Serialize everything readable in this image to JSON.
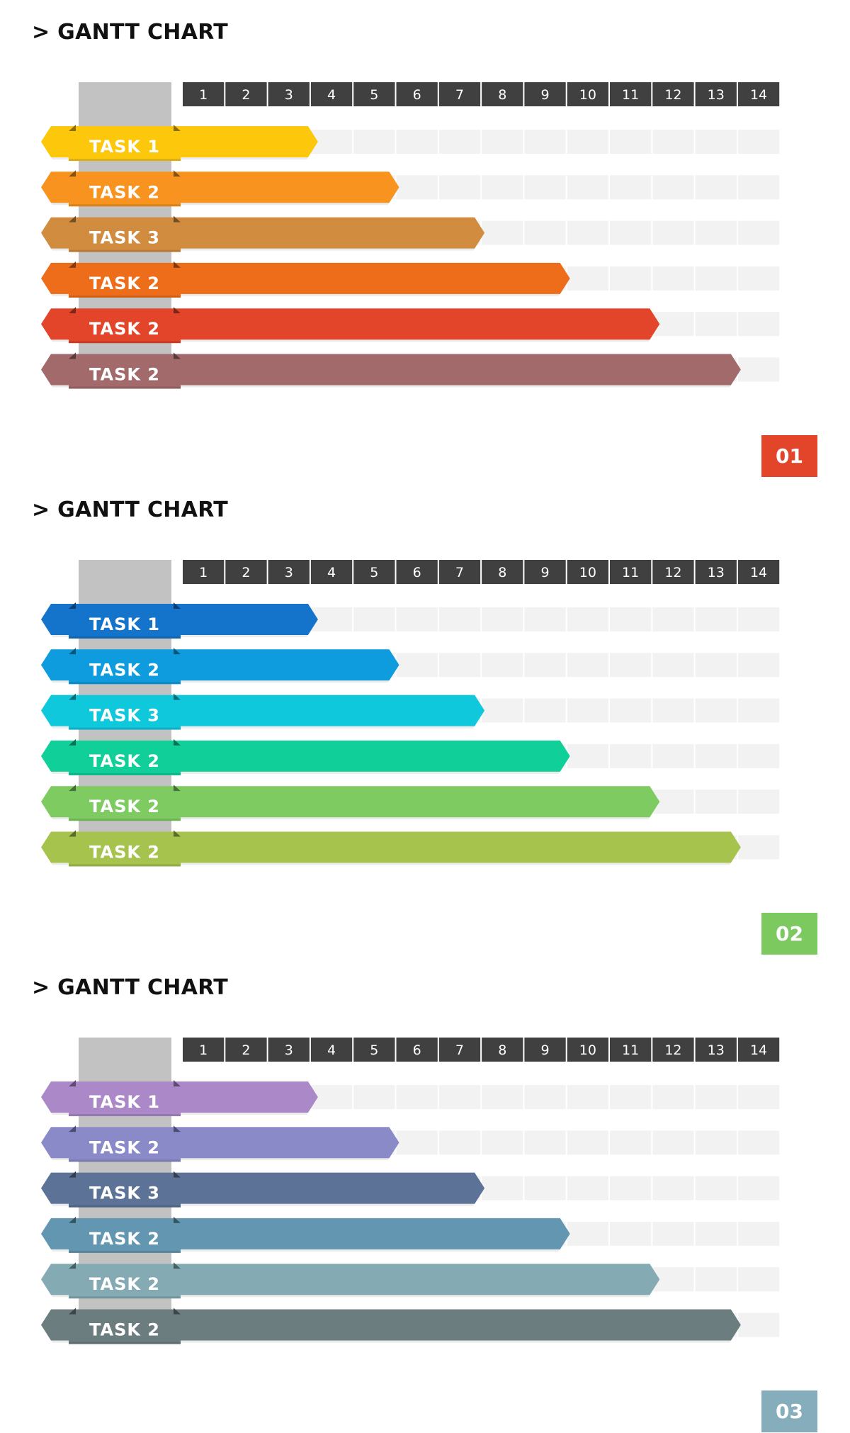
{
  "chart_data": [
    {
      "type": "gantt",
      "title": "> GANTT CHART",
      "badge": "01",
      "badge_color": "#E3452B",
      "days": [
        "1",
        "2",
        "3",
        "4",
        "5",
        "6",
        "7",
        "8",
        "9",
        "10",
        "11",
        "12",
        "13",
        "14"
      ],
      "tasks": [
        {
          "label": "TASK 1",
          "start": 1,
          "end": 3.5,
          "color": "#FDC80C"
        },
        {
          "label": "TASK 2",
          "start": 1,
          "end": 5.4,
          "color": "#F7931E"
        },
        {
          "label": "TASK 3",
          "start": 1,
          "end": 7.4,
          "color": "#D18C40"
        },
        {
          "label": "TASK 2",
          "start": 1,
          "end": 9.4,
          "color": "#EE6D1B"
        },
        {
          "label": "TASK 2",
          "start": 1,
          "end": 11.5,
          "color": "#E3452B"
        },
        {
          "label": "TASK 2",
          "start": 1,
          "end": 13.4,
          "color": "#A36A6B"
        }
      ]
    },
    {
      "type": "gantt",
      "title": "> GANTT CHART",
      "badge": "02",
      "badge_color": "#7CC960",
      "days": [
        "1",
        "2",
        "3",
        "4",
        "5",
        "6",
        "7",
        "8",
        "9",
        "10",
        "11",
        "12",
        "13",
        "14"
      ],
      "tasks": [
        {
          "label": "TASK 1",
          "start": 1,
          "end": 3.5,
          "color": "#1473CB"
        },
        {
          "label": "TASK 2",
          "start": 1,
          "end": 5.4,
          "color": "#0E9CDE"
        },
        {
          "label": "TASK 3",
          "start": 1,
          "end": 7.4,
          "color": "#10C8DC"
        },
        {
          "label": "TASK 2",
          "start": 1,
          "end": 9.4,
          "color": "#10CF98"
        },
        {
          "label": "TASK 2",
          "start": 1,
          "end": 11.5,
          "color": "#7ECB62"
        },
        {
          "label": "TASK 2",
          "start": 1,
          "end": 13.4,
          "color": "#A6C34E"
        }
      ]
    },
    {
      "type": "gantt",
      "title": "> GANTT CHART",
      "badge": "03",
      "badge_color": "#86ADBB",
      "days": [
        "1",
        "2",
        "3",
        "4",
        "5",
        "6",
        "7",
        "8",
        "9",
        "10",
        "11",
        "12",
        "13",
        "14"
      ],
      "tasks": [
        {
          "label": "TASK 1",
          "start": 1,
          "end": 3.5,
          "color": "#AB89C9"
        },
        {
          "label": "TASK 2",
          "start": 1,
          "end": 5.4,
          "color": "#8B8AC8"
        },
        {
          "label": "TASK 3",
          "start": 1,
          "end": 7.4,
          "color": "#5C7296"
        },
        {
          "label": "TASK 2",
          "start": 1,
          "end": 9.4,
          "color": "#6397B1"
        },
        {
          "label": "TASK 2",
          "start": 1,
          "end": 11.5,
          "color": "#84AAB4"
        },
        {
          "label": "TASK 2",
          "start": 1,
          "end": 13.4,
          "color": "#6C7D7F"
        }
      ]
    }
  ]
}
